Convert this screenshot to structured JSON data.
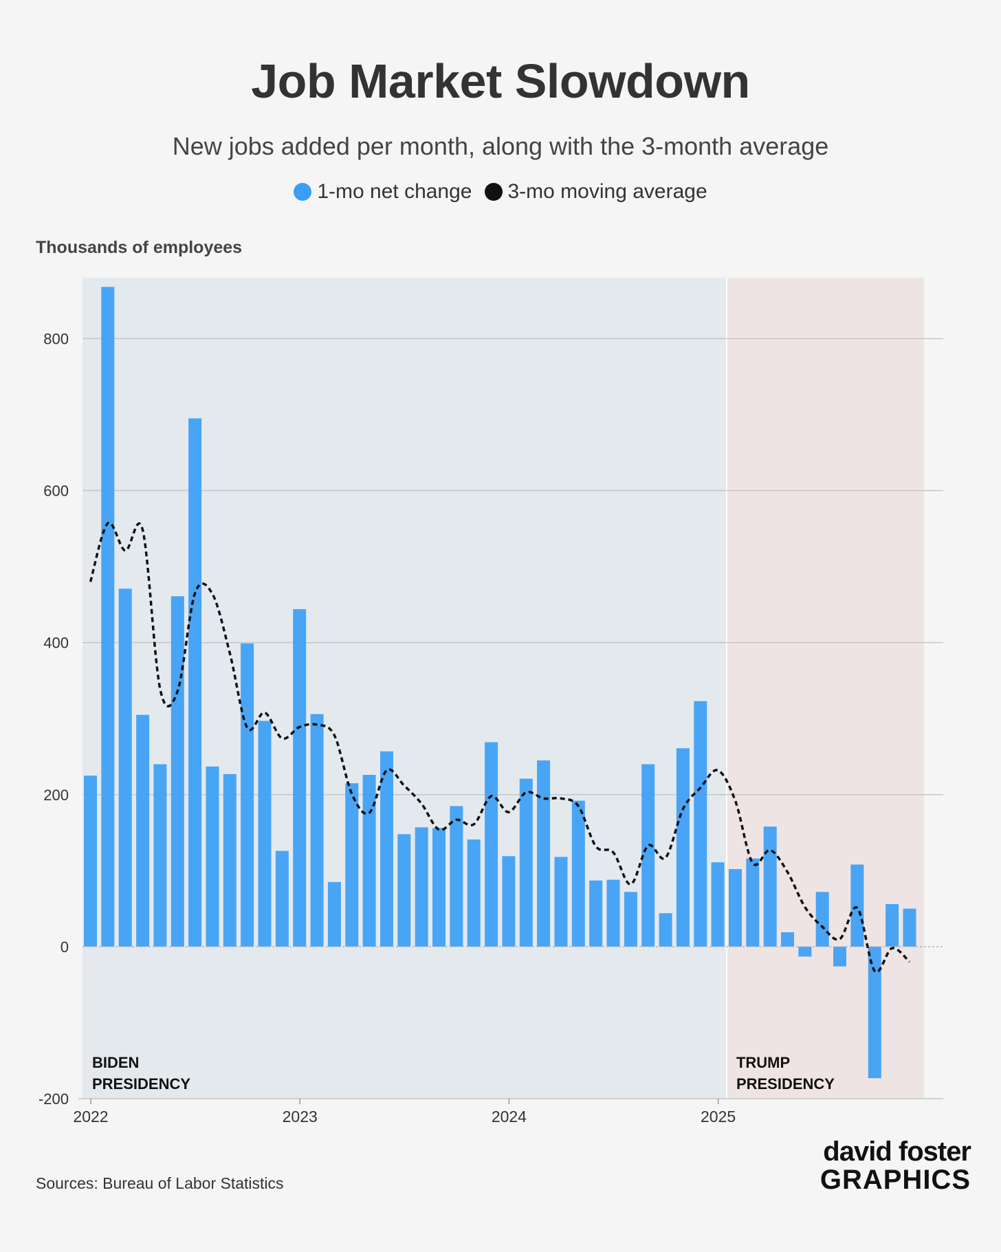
{
  "title": "Job Market Slowdown",
  "subtitle": "New jobs added per month, along with the 3-month average",
  "legend": {
    "bars_label": "1-mo net change",
    "line_label": "3-mo moving average"
  },
  "colors": {
    "bars": "#3b9ef5",
    "line": "#111111",
    "biden_bg": "#e4e9ee",
    "trump_bg": "#efe4e4",
    "background": "#f5f5f5"
  },
  "source": "Sources: Bureau of Labor Statistics",
  "brand": {
    "line1": "david foster",
    "line2": "GRAPHICS"
  },
  "chart_data": {
    "type": "bar",
    "title": "Job Market Slowdown",
    "subtitle": "New jobs added per month, along with the 3-month average",
    "ylabel": "Thousands of employees",
    "ylim": [
      -200,
      880
    ],
    "yticks": [
      -200,
      0,
      200,
      400,
      600,
      800
    ],
    "xticks": [
      "2022",
      "2023",
      "2024",
      "2025"
    ],
    "grid": true,
    "legend_position": "top-center",
    "categories": [
      "2022-01",
      "2022-02",
      "2022-03",
      "2022-04",
      "2022-05",
      "2022-06",
      "2022-07",
      "2022-08",
      "2022-09",
      "2022-10",
      "2022-11",
      "2022-12",
      "2023-01",
      "2023-02",
      "2023-03",
      "2023-04",
      "2023-05",
      "2023-06",
      "2023-07",
      "2023-08",
      "2023-09",
      "2023-10",
      "2023-11",
      "2023-12",
      "2024-01",
      "2024-02",
      "2024-03",
      "2024-04",
      "2024-05",
      "2024-06",
      "2024-07",
      "2024-08",
      "2024-09",
      "2024-10",
      "2024-11",
      "2024-12",
      "2025-01",
      "2025-02",
      "2025-03",
      "2025-04",
      "2025-05",
      "2025-06",
      "2025-07",
      "2025-08",
      "2025-09",
      "2025-10",
      "2025-11",
      "2025-12"
    ],
    "series": [
      {
        "name": "1-mo net change",
        "type": "bar",
        "values": [
          225,
          868,
          471,
          305,
          240,
          461,
          695,
          237,
          227,
          399,
          297,
          126,
          444,
          306,
          85,
          215,
          226,
          257,
          148,
          157,
          156,
          185,
          141,
          269,
          119,
          221,
          245,
          118,
          192,
          87,
          88,
          72,
          240,
          44,
          261,
          323,
          111,
          102,
          116,
          158,
          19,
          -13,
          72,
          -26,
          108,
          -173,
          56,
          50
        ]
      },
      {
        "name": "3-mo moving average",
        "type": "line",
        "values": [
          480,
          557,
          521,
          548,
          339,
          336,
          465,
          464,
          386,
          288,
          308,
          274,
          289,
          292,
          278,
          201,
          176,
          232,
          212,
          188,
          154,
          167,
          161,
          198,
          177,
          203,
          195,
          195,
          185,
          132,
          124,
          82,
          133,
          117,
          181,
          209,
          232,
          192,
          110,
          127,
          98,
          52,
          26,
          10,
          51,
          -32,
          -2,
          -20
        ]
      }
    ],
    "annotations": [
      {
        "text_lines": [
          "BIDEN",
          "PRESIDENCY"
        ],
        "region": "2022-01 to 2025-01"
      },
      {
        "text_lines": [
          "TRUMP",
          "PRESIDENCY"
        ],
        "region": "2025-01 to 2025-12"
      }
    ]
  }
}
